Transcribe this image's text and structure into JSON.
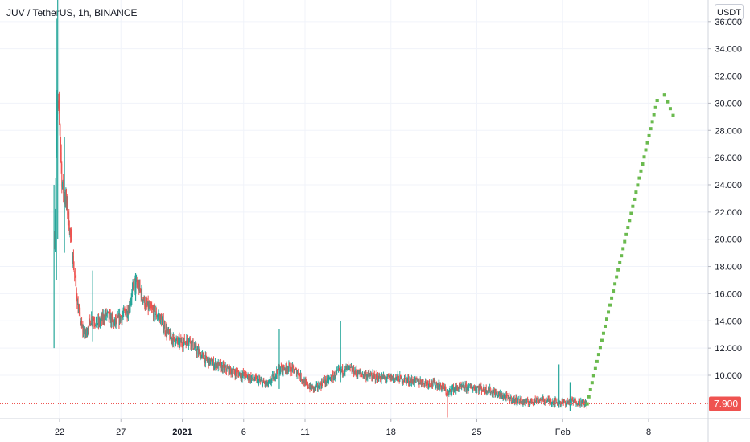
{
  "header": {
    "title": "JUV / TetherUS, 1h, BINANCE",
    "currency_button": "USDT"
  },
  "colors": {
    "up": "#26a69a",
    "down": "#ef5350",
    "projection": "#6aba4e",
    "last_price_line": "#ef5350",
    "grid": "#f0f3fa",
    "axis_text": "#131722"
  },
  "chart_data": {
    "type": "candlestick",
    "title": "JUV / TetherUS, 1h, BINANCE",
    "ylabel": "USDT",
    "ylim": [
      6.9,
      38.7
    ],
    "y_ticks": [
      "10.000",
      "12.000",
      "14.000",
      "16.000",
      "18.000",
      "20.000",
      "22.000",
      "24.000",
      "26.000",
      "28.000",
      "30.000",
      "32.000",
      "34.000",
      "36.000"
    ],
    "x_ticks": [
      {
        "label": "22",
        "day": 0
      },
      {
        "label": "27",
        "day": 5
      },
      {
        "label": "2021",
        "day": 10,
        "bold": true
      },
      {
        "label": "6",
        "day": 15
      },
      {
        "label": "11",
        "day": 20
      },
      {
        "label": "18",
        "day": 27
      },
      {
        "label": "25",
        "day": 34
      },
      {
        "label": "Feb",
        "day": 41
      },
      {
        "label": "8",
        "day": 48
      }
    ],
    "last_price": 7.9,
    "last_price_label": "7.900",
    "price_path": [
      [
        -0.4,
        20.0
      ],
      [
        -0.2,
        30.0
      ],
      [
        0.0,
        29.0
      ],
      [
        0.2,
        24.0
      ],
      [
        0.5,
        23.0
      ],
      [
        0.8,
        21.0
      ],
      [
        1.1,
        18.5
      ],
      [
        1.5,
        15.0
      ],
      [
        1.8,
        13.5
      ],
      [
        2.1,
        13.0
      ],
      [
        2.6,
        14.2
      ],
      [
        3.2,
        13.8
      ],
      [
        3.8,
        14.5
      ],
      [
        4.5,
        13.8
      ],
      [
        5.0,
        14.3
      ],
      [
        5.6,
        14.8
      ],
      [
        6.1,
        16.8
      ],
      [
        6.5,
        16.4
      ],
      [
        7.0,
        15.2
      ],
      [
        7.6,
        14.7
      ],
      [
        8.2,
        14.2
      ],
      [
        8.8,
        13.1
      ],
      [
        9.4,
        12.5
      ],
      [
        10.0,
        12.4
      ],
      [
        10.6,
        12.6
      ],
      [
        11.2,
        11.8
      ],
      [
        11.8,
        11.2
      ],
      [
        12.6,
        10.8
      ],
      [
        13.2,
        10.6
      ],
      [
        14.0,
        10.3
      ],
      [
        15.0,
        10.0
      ],
      [
        16.2,
        9.6
      ],
      [
        17.0,
        9.3
      ],
      [
        17.8,
        10.4
      ],
      [
        18.6,
        10.6
      ],
      [
        19.4,
        10.2
      ],
      [
        20.1,
        9.3
      ],
      [
        20.8,
        9.0
      ],
      [
        21.5,
        9.5
      ],
      [
        22.2,
        9.8
      ],
      [
        22.8,
        10.3
      ],
      [
        23.5,
        10.5
      ],
      [
        24.5,
        10.1
      ],
      [
        25.5,
        9.9
      ],
      [
        26.5,
        9.8
      ],
      [
        27.5,
        9.8
      ],
      [
        28.5,
        9.6
      ],
      [
        29.5,
        9.5
      ],
      [
        30.5,
        9.4
      ],
      [
        31.3,
        9.1
      ],
      [
        31.6,
        8.6
      ],
      [
        32.0,
        9.0
      ],
      [
        33.0,
        9.1
      ],
      [
        34.0,
        9.1
      ],
      [
        35.0,
        8.9
      ],
      [
        36.0,
        8.5
      ],
      [
        37.0,
        8.2
      ],
      [
        38.0,
        8.0
      ],
      [
        39.0,
        8.2
      ],
      [
        40.0,
        8.1
      ],
      [
        41.0,
        8.0
      ],
      [
        42.0,
        8.1
      ],
      [
        43.0,
        7.9
      ]
    ],
    "spikes": [
      {
        "day": -0.45,
        "low": 12.0,
        "high": 24.0
      },
      {
        "day": -0.25,
        "low": 17.0,
        "high": 36.2
      },
      {
        "day": -0.15,
        "low": 20.0,
        "high": 38.7
      },
      {
        "day": 0.4,
        "low": 19.0,
        "high": 27.5
      },
      {
        "day": 2.7,
        "low": 12.5,
        "high": 17.7
      },
      {
        "day": 6.2,
        "low": 15.5,
        "high": 17.5
      },
      {
        "day": 17.9,
        "low": 9.0,
        "high": 13.4
      },
      {
        "day": 22.9,
        "low": 9.5,
        "high": 14.0
      },
      {
        "day": 31.6,
        "low": 6.9,
        "high": 8.8
      },
      {
        "day": 40.7,
        "low": 7.6,
        "high": 10.8
      },
      {
        "day": 41.6,
        "low": 7.4,
        "high": 9.5
      }
    ],
    "projection": [
      {
        "day": 43.0,
        "value": 7.9
      },
      {
        "day": 48.7,
        "value": 30.2
      },
      {
        "day": 49.3,
        "value": 30.6
      },
      {
        "day": 50.0,
        "value": 29.1
      }
    ]
  }
}
